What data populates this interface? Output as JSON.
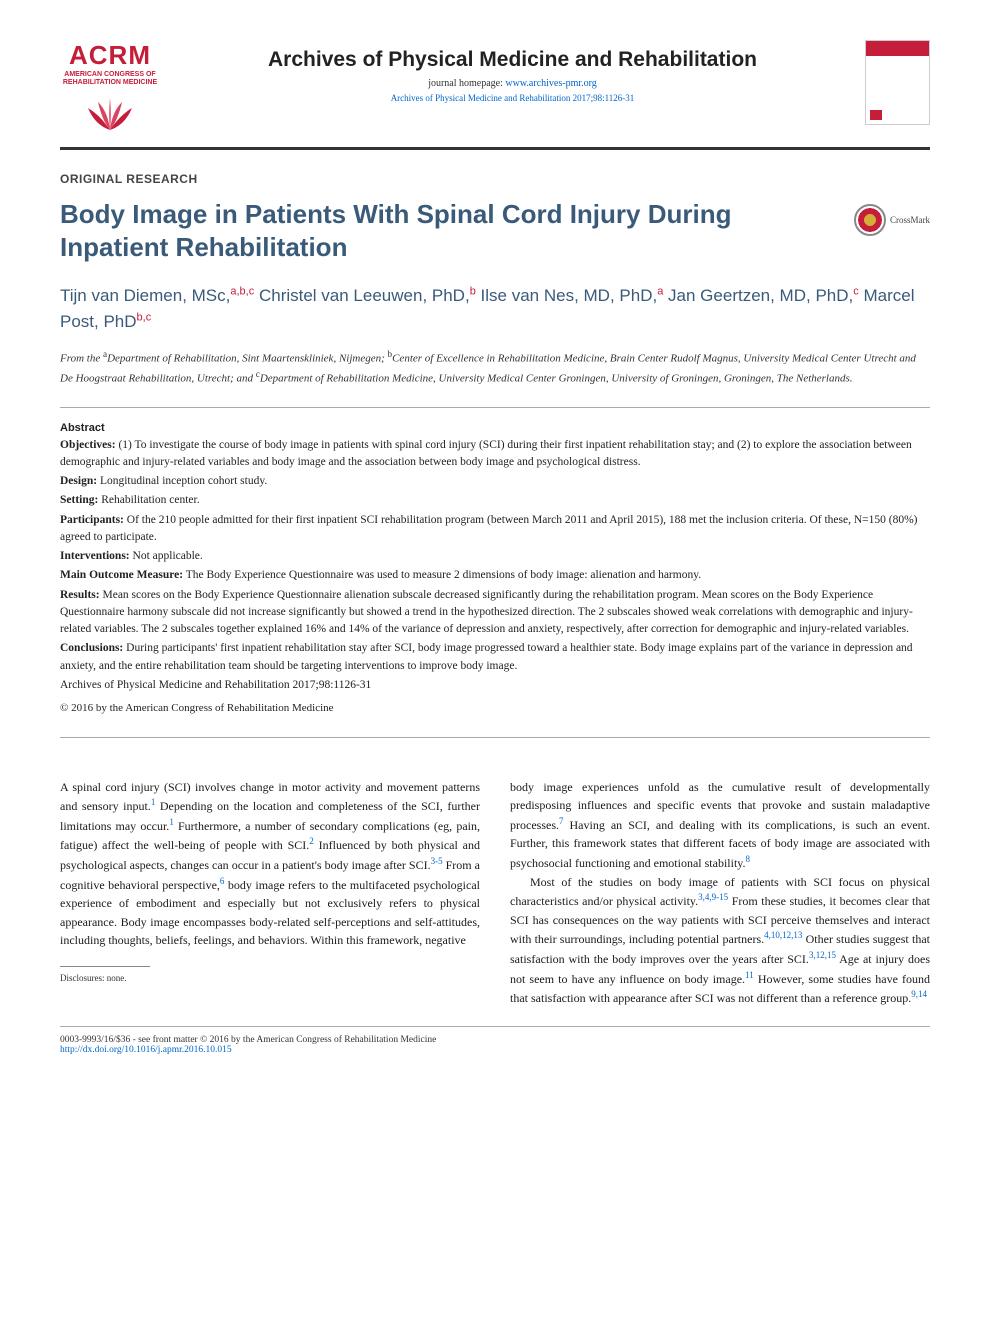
{
  "header": {
    "logo_text": "ACRM",
    "logo_sub": "AMERICAN CONGRESS OF REHABILITATION MEDICINE",
    "journal_name": "Archives of Physical Medicine and Rehabilitation",
    "homepage_label": "journal homepage: ",
    "homepage_url": "www.archives-pmr.org",
    "citation": "Archives of Physical Medicine and Rehabilitation 2017;98:1126-31"
  },
  "section_label": "ORIGINAL RESEARCH",
  "title": "Body Image in Patients With Spinal Cord Injury During Inpatient Rehabilitation",
  "crossmark_label": "CrossMark",
  "authors_html": "Tijn van Diemen, MSc,<sup>a,b,c</sup> Christel van Leeuwen, PhD,<sup>b</sup> Ilse van Nes, MD, PhD,<sup>a</sup> Jan Geertzen, MD, PhD,<sup>c</sup> Marcel Post, PhD<sup>b,c</sup>",
  "affiliations": "From the <sup>a</sup>Department of Rehabilitation, Sint Maartenskliniek, Nijmegen; <sup>b</sup>Center of Excellence in Rehabilitation Medicine, Brain Center Rudolf Magnus, University Medical Center Utrecht and De Hoogstraat Rehabilitation, Utrecht; and <sup>c</sup>Department of Rehabilitation Medicine, University Medical Center Groningen, University of Groningen, Groningen, The Netherlands.",
  "abstract": {
    "heading": "Abstract",
    "objectives": "(1) To investigate the course of body image in patients with spinal cord injury (SCI) during their first inpatient rehabilitation stay; and (2) to explore the association between demographic and injury-related variables and body image and the association between body image and psychological distress.",
    "design": "Longitudinal inception cohort study.",
    "setting": "Rehabilitation center.",
    "participants": "Of the 210 people admitted for their first inpatient SCI rehabilitation program (between March 2011 and April 2015), 188 met the inclusion criteria. Of these, N=150 (80%) agreed to participate.",
    "interventions": "Not applicable.",
    "main_outcome": "The Body Experience Questionnaire was used to measure 2 dimensions of body image: alienation and harmony.",
    "results": "Mean scores on the Body Experience Questionnaire alienation subscale decreased significantly during the rehabilitation program. Mean scores on the Body Experience Questionnaire harmony subscale did not increase significantly but showed a trend in the hypothesized direction. The 2 subscales showed weak correlations with demographic and injury-related variables. The 2 subscales together explained 16% and 14% of the variance of depression and anxiety, respectively, after correction for demographic and injury-related variables.",
    "conclusions": "During participants' first inpatient rehabilitation stay after SCI, body image progressed toward a healthier state. Body image explains part of the variance in depression and anxiety, and the entire rehabilitation team should be targeting interventions to improve body image.",
    "archives_line": "Archives of Physical Medicine and Rehabilitation 2017;98:1126-31",
    "copyright": "© 2016 by the American Congress of Rehabilitation Medicine"
  },
  "body": {
    "col1": "A spinal cord injury (SCI) involves change in motor activity and movement patterns and sensory input.<sup>1</sup> Depending on the location and completeness of the SCI, further limitations may occur.<sup>1</sup> Furthermore, a number of secondary complications (eg, pain, fatigue) affect the well-being of people with SCI.<sup>2</sup> Influenced by both physical and psychological aspects, changes can occur in a patient's body image after SCI.<sup>3-5</sup> From a cognitive behavioral perspective,<sup>6</sup> body image refers to the multifaceted psychological experience of embodiment and especially but not exclusively refers to physical appearance. Body image encompasses body-related self-perceptions and self-attitudes, including thoughts, beliefs, feelings, and behaviors. Within this framework, negative",
    "col2": "body image experiences unfold as the cumulative result of developmentally predisposing influences and specific events that provoke and sustain maladaptive processes.<sup>7</sup> Having an SCI, and dealing with its complications, is such an event. Further, this framework states that different facets of body image are associated with psychosocial functioning and emotional stability.<sup>8</sup><br>&nbsp;&nbsp;&nbsp;Most of the studies on body image of patients with SCI focus on physical characteristics and/or physical activity.<sup>3,4,9-15</sup> From these studies, it becomes clear that SCI has consequences on the way patients with SCI perceive themselves and interact with their surroundings, including potential partners.<sup>4,10,12,13</sup> Other studies suggest that satisfaction with the body improves over the years after SCI.<sup>3,12,15</sup> Age at injury does not seem to have any influence on body image.<sup>11</sup> However, some studies have found that satisfaction with appearance after SCI was not different than a reference group.<sup>9,14</sup>"
  },
  "disclosure": "Disclosures: none.",
  "footer": {
    "line1": "0003-9993/16/$36 - see front matter © 2016 by the American Congress of Rehabilitation Medicine",
    "doi": "http://dx.doi.org/10.1016/j.apmr.2016.10.015"
  }
}
